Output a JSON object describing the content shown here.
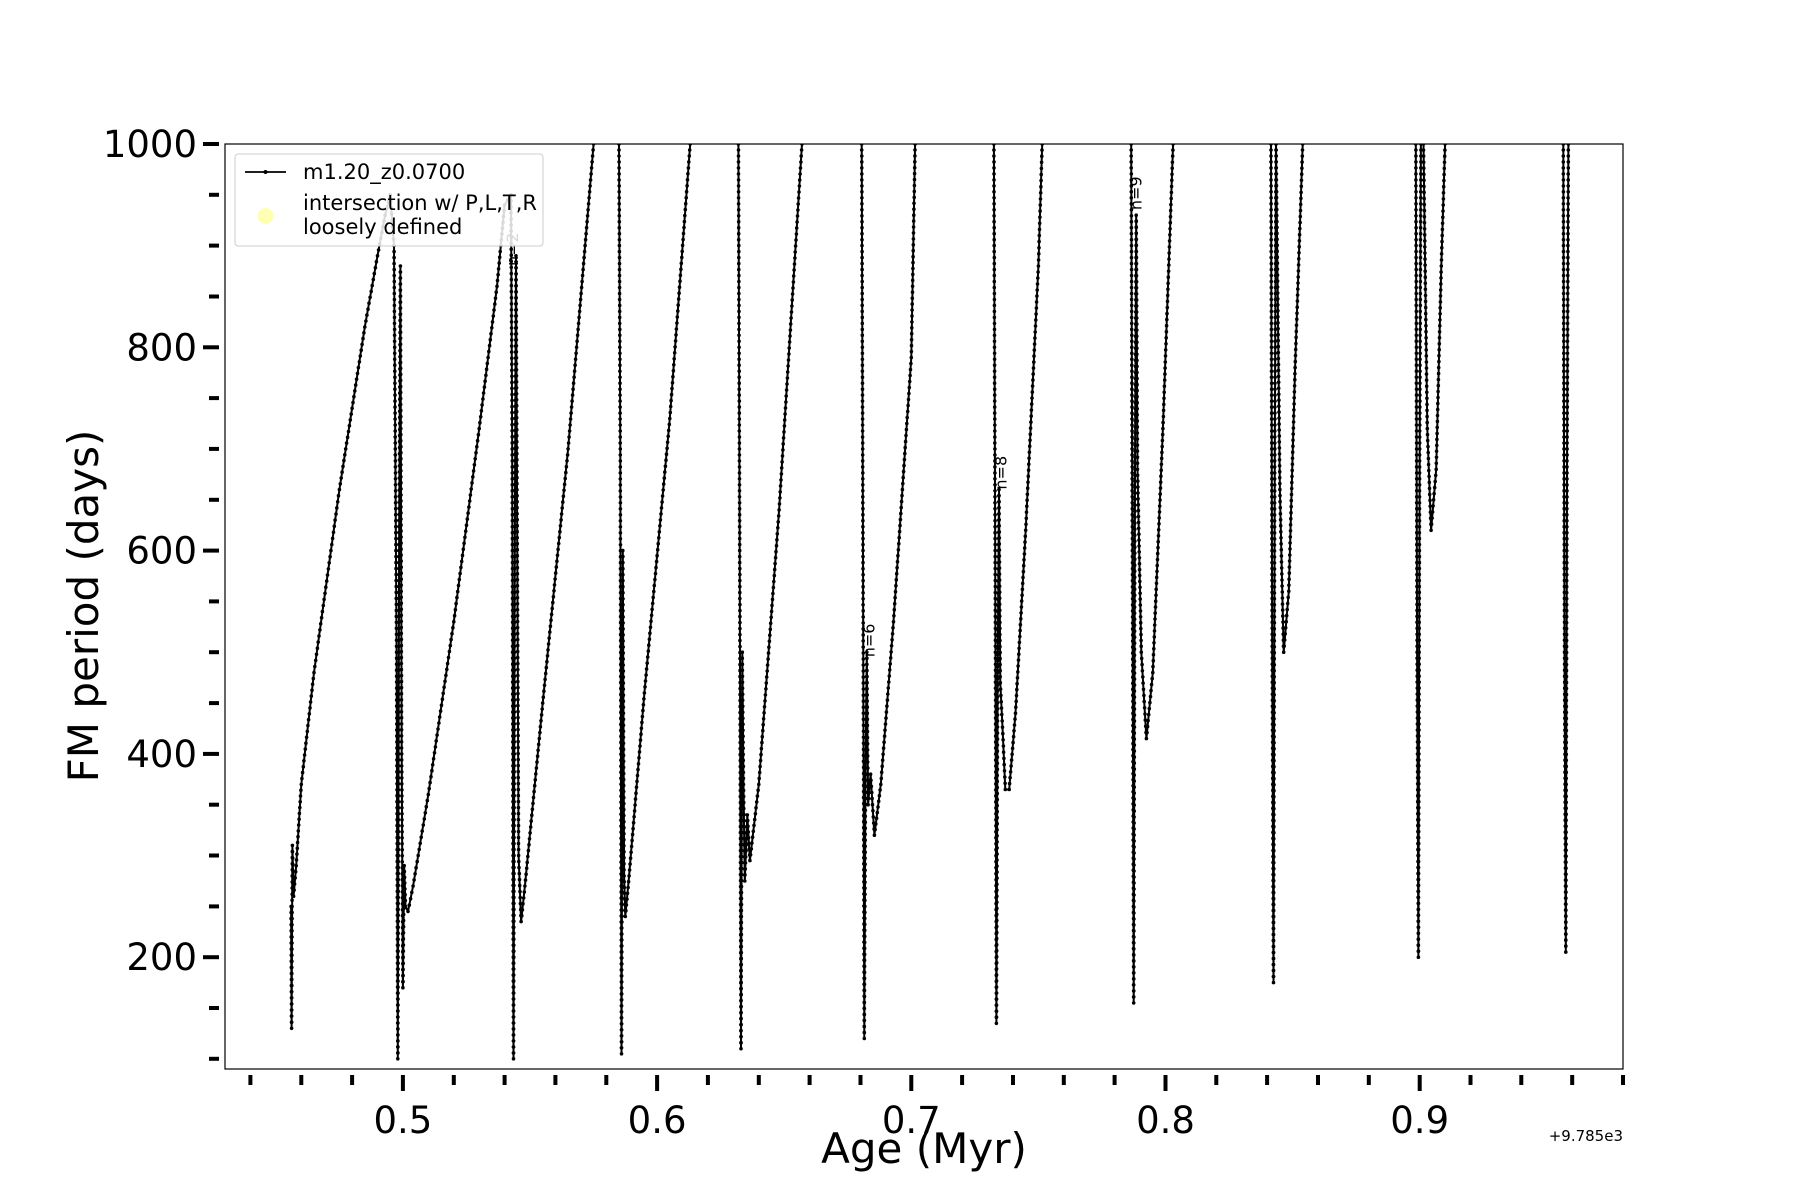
{
  "chart_data": {
    "type": "line",
    "xlabel": "Age (Myr)",
    "ylabel": "FM period (days)",
    "x_offset_label": "+9.785e3",
    "xlim": [
      0.43,
      0.98
    ],
    "ylim": [
      90,
      1000
    ],
    "x_ticks": [
      {
        "value": 0.5,
        "label": "0.5"
      },
      {
        "value": 0.6,
        "label": "0.6"
      },
      {
        "value": 0.7,
        "label": "0.7"
      },
      {
        "value": 0.8,
        "label": "0.8"
      },
      {
        "value": 0.9,
        "label": "0.9"
      }
    ],
    "y_ticks": [
      {
        "value": 200,
        "label": "200"
      },
      {
        "value": 400,
        "label": "400"
      },
      {
        "value": 600,
        "label": "600"
      },
      {
        "value": 800,
        "label": "800"
      },
      {
        "value": 1000,
        "label": "1000"
      }
    ],
    "grid": false,
    "legend_position": "top-left",
    "legend": [
      {
        "label": "m1.20_z0.0700",
        "marker": "line"
      },
      {
        "label": "intersection w/ P,L,T,R\nloosely defined",
        "marker": "circle",
        "color": "#ffffb3"
      }
    ],
    "line_color": "#000000",
    "annotations": [
      {
        "text": "n=2",
        "x": 0.5453,
        "y": 880
      },
      {
        "text": "n=6",
        "x": 0.6855,
        "y": 495
      },
      {
        "text": "n=8",
        "x": 0.7375,
        "y": 660
      },
      {
        "text": "n=9",
        "x": 0.7905,
        "y": 935
      }
    ],
    "series": [
      {
        "points": [
          [
            0.456,
            250
          ],
          [
            0.4562,
            130
          ],
          [
            0.4565,
            310
          ],
          [
            0.457,
            260
          ],
          [
            0.458,
            290
          ],
          [
            0.46,
            370
          ],
          [
            0.465,
            480
          ],
          [
            0.47,
            570
          ],
          [
            0.475,
            660
          ],
          [
            0.48,
            740
          ],
          [
            0.485,
            820
          ],
          [
            0.49,
            890
          ],
          [
            0.493,
            930
          ],
          [
            0.495,
            950
          ],
          [
            0.4965,
            900
          ],
          [
            0.4975,
            500
          ],
          [
            0.498,
            100
          ],
          [
            0.4985,
            600
          ],
          [
            0.499,
            880
          ],
          [
            0.4995,
            400
          ],
          [
            0.5,
            170
          ],
          [
            0.5005,
            290
          ],
          [
            0.501,
            250
          ],
          [
            0.502,
            245
          ],
          [
            0.504,
            270
          ],
          [
            0.51,
            360
          ],
          [
            0.52,
            530
          ],
          [
            0.53,
            720
          ],
          [
            0.537,
            860
          ],
          [
            0.54,
            940
          ],
          [
            0.5425,
            950
          ],
          [
            0.543,
            700
          ],
          [
            0.5435,
            100
          ],
          [
            0.544,
            600
          ],
          [
            0.5445,
            890
          ],
          [
            0.5455,
            300
          ],
          [
            0.5465,
            235
          ],
          [
            0.548,
            270
          ],
          [
            0.555,
            450
          ],
          [
            0.565,
            700
          ],
          [
            0.575,
            1000
          ]
        ]
      },
      {
        "points": [
          [
            0.585,
            1000
          ],
          [
            0.5855,
            700
          ],
          [
            0.586,
            105
          ],
          [
            0.5865,
            600
          ],
          [
            0.587,
            280
          ],
          [
            0.5875,
            240
          ],
          [
            0.589,
            280
          ],
          [
            0.595,
            460
          ],
          [
            0.605,
            730
          ],
          [
            0.613,
            1000
          ]
        ]
      },
      {
        "points": [
          [
            0.632,
            1000
          ],
          [
            0.6325,
            600
          ],
          [
            0.633,
            110
          ],
          [
            0.6335,
            500
          ],
          [
            0.634,
            370
          ],
          [
            0.6345,
            275
          ],
          [
            0.6355,
            340
          ],
          [
            0.6365,
            295
          ],
          [
            0.64,
            370
          ],
          [
            0.648,
            640
          ],
          [
            0.657,
            1000
          ]
        ]
      },
      {
        "points": [
          [
            0.6805,
            1000
          ],
          [
            0.681,
            600
          ],
          [
            0.6815,
            120
          ],
          [
            0.682,
            380
          ],
          [
            0.6825,
            500
          ],
          [
            0.683,
            350
          ],
          [
            0.684,
            380
          ],
          [
            0.6855,
            320
          ],
          [
            0.688,
            370
          ],
          [
            0.693,
            530
          ],
          [
            0.7,
            790
          ],
          [
            0.7015,
            1000
          ]
        ]
      },
      {
        "points": [
          [
            0.7325,
            1000
          ],
          [
            0.733,
            600
          ],
          [
            0.7335,
            135
          ],
          [
            0.734,
            480
          ],
          [
            0.7345,
            660
          ],
          [
            0.735,
            470
          ],
          [
            0.736,
            420
          ],
          [
            0.737,
            365
          ],
          [
            0.7385,
            365
          ],
          [
            0.741,
            440
          ],
          [
            0.745,
            620
          ],
          [
            0.75,
            880
          ],
          [
            0.7515,
            1000
          ]
        ]
      },
      {
        "points": [
          [
            0.7865,
            1000
          ],
          [
            0.787,
            600
          ],
          [
            0.7875,
            155
          ],
          [
            0.788,
            680
          ],
          [
            0.7885,
            930
          ],
          [
            0.789,
            680
          ],
          [
            0.7905,
            500
          ],
          [
            0.7925,
            415
          ],
          [
            0.795,
            480
          ],
          [
            0.799,
            720
          ],
          [
            0.803,
            1000
          ]
        ]
      },
      {
        "points": [
          [
            0.8415,
            1000
          ],
          [
            0.842,
            500
          ],
          [
            0.8425,
            175
          ],
          [
            0.843,
            700
          ],
          [
            0.8435,
            1000
          ]
        ]
      },
      {
        "points": [
          [
            0.8435,
            1000
          ],
          [
            0.845,
            660
          ],
          [
            0.8465,
            500
          ],
          [
            0.8485,
            560
          ],
          [
            0.851,
            780
          ],
          [
            0.854,
            1000
          ]
        ]
      },
      {
        "points": [
          [
            0.8985,
            1000
          ],
          [
            0.899,
            500
          ],
          [
            0.8995,
            200
          ],
          [
            0.9,
            700
          ],
          [
            0.9005,
            1000
          ]
        ]
      },
      {
        "points": [
          [
            0.9015,
            1000
          ],
          [
            0.903,
            720
          ],
          [
            0.9045,
            620
          ],
          [
            0.9065,
            680
          ],
          [
            0.9085,
            880
          ],
          [
            0.91,
            1000
          ]
        ]
      },
      {
        "points": [
          [
            0.9565,
            1000
          ],
          [
            0.957,
            500
          ],
          [
            0.9575,
            205
          ],
          [
            0.958,
            700
          ],
          [
            0.9585,
            1000
          ]
        ]
      }
    ]
  }
}
